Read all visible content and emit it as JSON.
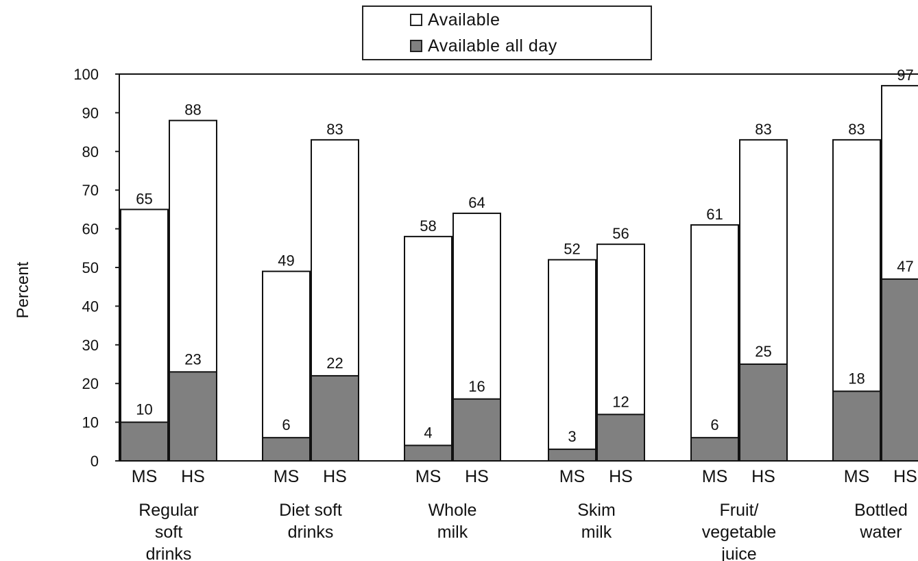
{
  "chart_data": {
    "type": "bar",
    "stacking": "overlay",
    "ylabel": "Percent",
    "ylim": [
      0,
      100
    ],
    "yticks": [
      0,
      10,
      20,
      30,
      40,
      50,
      60,
      70,
      80,
      90,
      100
    ],
    "grid": false,
    "legend_position": "top-center",
    "groups": [
      {
        "label": [
          "Regular",
          "soft",
          "drinks"
        ],
        "bars": [
          {
            "level": "MS",
            "available": 65,
            "available_all_day": 10
          },
          {
            "level": "HS",
            "available": 88,
            "available_all_day": 23
          }
        ]
      },
      {
        "label": [
          "Diet soft",
          "drinks"
        ],
        "bars": [
          {
            "level": "MS",
            "available": 49,
            "available_all_day": 6
          },
          {
            "level": "HS",
            "available": 83,
            "available_all_day": 22
          }
        ]
      },
      {
        "label": [
          "Whole",
          "milk"
        ],
        "bars": [
          {
            "level": "MS",
            "available": 58,
            "available_all_day": 4
          },
          {
            "level": "HS",
            "available": 64,
            "available_all_day": 16
          }
        ]
      },
      {
        "label": [
          "Skim",
          "milk"
        ],
        "bars": [
          {
            "level": "MS",
            "available": 52,
            "available_all_day": 3
          },
          {
            "level": "HS",
            "available": 56,
            "available_all_day": 12
          }
        ]
      },
      {
        "label": [
          "Fruit/",
          "vegetable",
          "juice"
        ],
        "bars": [
          {
            "level": "MS",
            "available": 61,
            "available_all_day": 6
          },
          {
            "level": "HS",
            "available": 83,
            "available_all_day": 25
          }
        ]
      },
      {
        "label": [
          "Bottled",
          "water"
        ],
        "bars": [
          {
            "level": "MS",
            "available": 83,
            "available_all_day": 18
          },
          {
            "level": "HS",
            "available": 97,
            "available_all_day": 47
          }
        ]
      }
    ],
    "series": [
      {
        "name": "Available",
        "key": "available",
        "color": "#ffffff"
      },
      {
        "name": "Available all day",
        "key": "available_all_day",
        "color": "#808080"
      }
    ]
  }
}
